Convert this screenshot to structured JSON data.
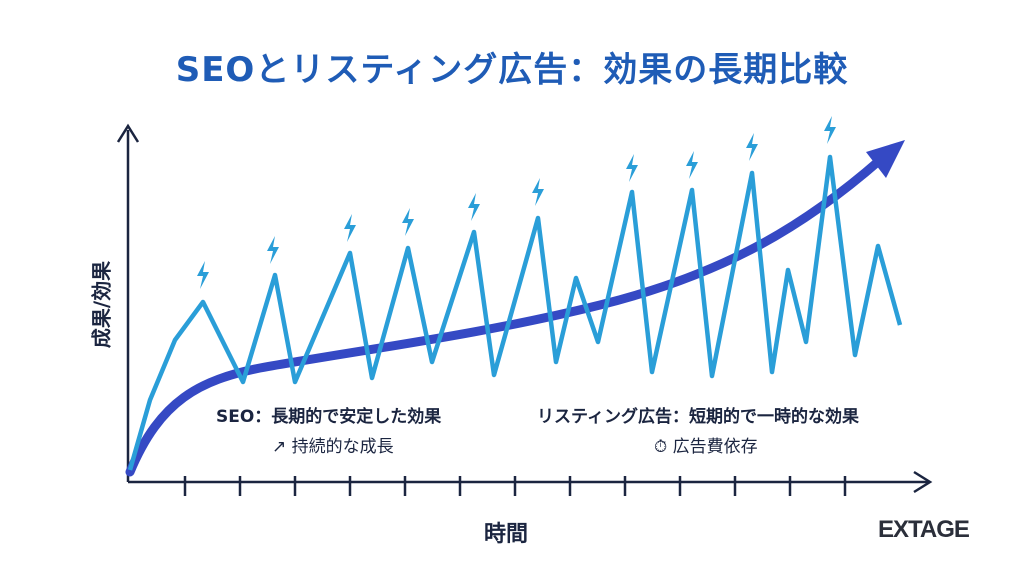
{
  "title": "SEOとリスティング広告：効果の長期比較",
  "axes": {
    "y_label": "成果/効果",
    "x_label": "時間"
  },
  "seo": {
    "label": "SEO：長期的で安定した効果",
    "sub_label": "持続的な成長",
    "icon": "trend-arrow-icon",
    "color": "#3549c4"
  },
  "listing": {
    "label": "リスティング広告：短期的で一時的な効果",
    "sub_label": "広告費依存",
    "icon": "stopwatch-icon",
    "color": "#2a9ed8",
    "spike_icon": "lightning-icon"
  },
  "logo": "EXTAGE",
  "colors": {
    "title": "#1f5cb6",
    "axis": "#1b2540"
  }
}
